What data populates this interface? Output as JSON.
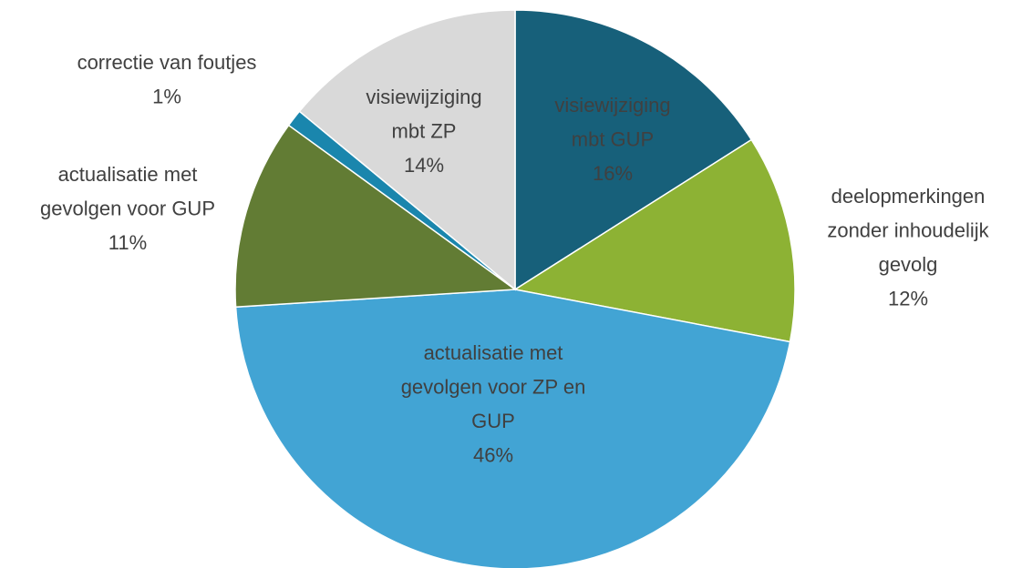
{
  "chart_data": {
    "type": "pie",
    "categories": [
      [
        "visiewijziging",
        "mbt GUP"
      ],
      [
        "deelopmerkingen",
        "zonder inhoudelijk",
        "gevolg"
      ],
      [
        "actualisatie met",
        "gevolgen voor ZP en",
        "GUP"
      ],
      [
        "actualisatie met",
        "gevolgen voor GUP"
      ],
      [
        "correctie van foutjes"
      ],
      [
        "visiewijziging",
        "mbt ZP"
      ]
    ],
    "values": [
      16,
      12,
      46,
      11,
      1,
      14
    ],
    "value_labels": [
      "16%",
      "12%",
      "46%",
      "11%",
      "1%",
      "14%"
    ],
    "colors": [
      "#17607a",
      "#8db234",
      "#42a4d4",
      "#627c34",
      "#1a86ad",
      "#d9d9d9"
    ]
  }
}
